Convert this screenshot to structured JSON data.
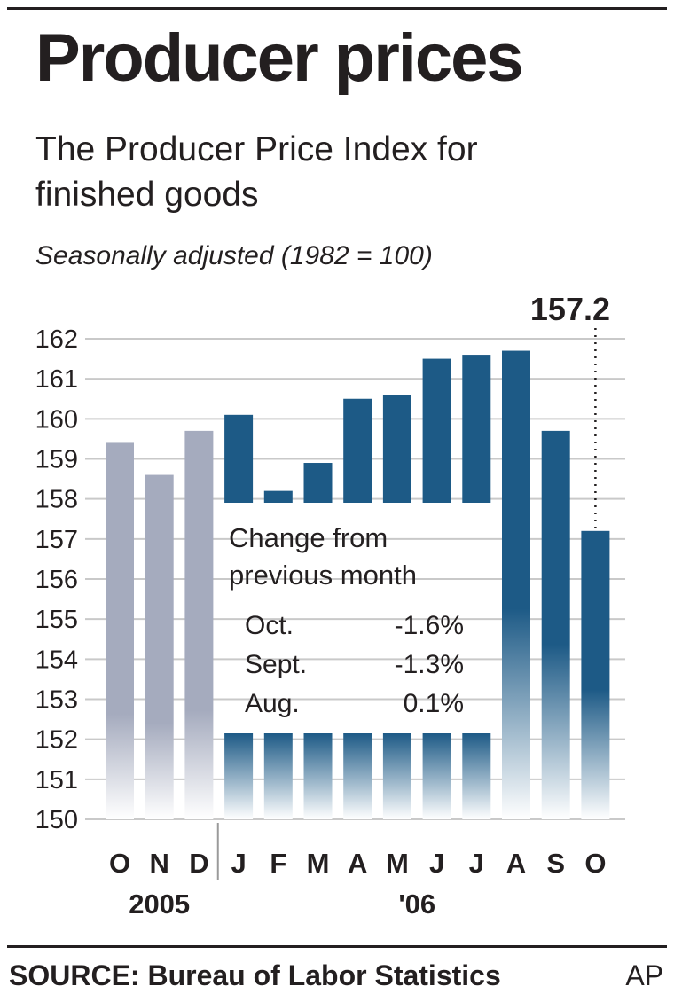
{
  "header": {
    "title": "Producer prices",
    "subtitle": "The Producer Price Index for finished goods",
    "note": "Seasonally adjusted (1982 = 100)"
  },
  "chart_data": {
    "type": "bar",
    "title": "Producer prices",
    "subtitle": "The Producer Price Index for finished goods",
    "note": "Seasonally adjusted (1982 = 100)",
    "categories": [
      "O",
      "N",
      "D",
      "J",
      "F",
      "M",
      "A",
      "M",
      "J",
      "J",
      "A",
      "S",
      "O"
    ],
    "year_groups": [
      {
        "label": "2005",
        "from": 0,
        "to": 2
      },
      {
        "label": "'06",
        "from": 3,
        "to": 12
      }
    ],
    "series": [
      {
        "values": [
          159.4,
          158.6,
          159.7,
          160.1,
          158.2,
          158.9,
          160.5,
          160.6,
          161.5,
          161.6,
          161.7,
          159.7,
          157.2
        ]
      }
    ],
    "ylim": [
      150,
      162
    ],
    "yticks": [
      150,
      151,
      152,
      153,
      154,
      155,
      156,
      157,
      158,
      159,
      160,
      161,
      162
    ],
    "grid": true,
    "highlight": {
      "index": 12,
      "label": "157.2"
    },
    "colors": {
      "2005": "#a5abbe",
      "2006": "#1d5a86"
    },
    "inset": {
      "title_line1": "Change from",
      "title_line2": "previous month",
      "rows": [
        {
          "month": "Oct.",
          "value": "-1.6%"
        },
        {
          "month": "Sept.",
          "value": "-1.3%"
        },
        {
          "month": "Aug.",
          "value": "0.1%"
        }
      ]
    }
  },
  "footer": {
    "source": "SOURCE: Bureau of Labor Statistics",
    "credit": "AP"
  }
}
